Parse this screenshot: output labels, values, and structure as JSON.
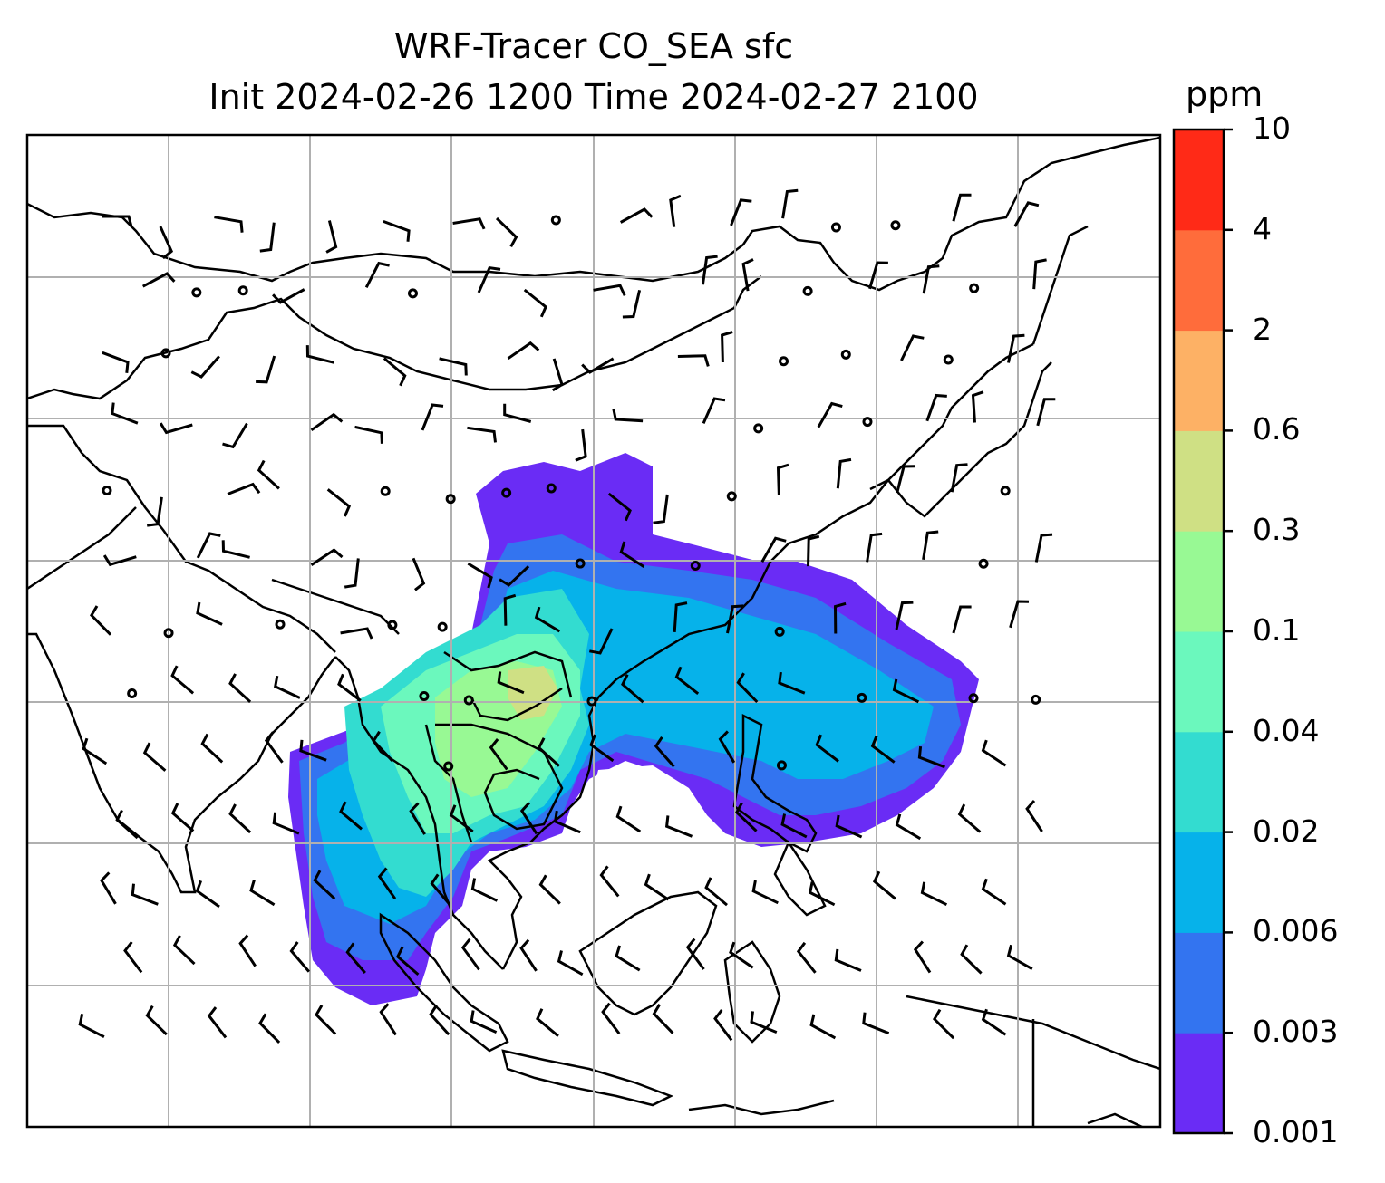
{
  "title": {
    "line1": "WRF-Tracer CO_SEA sfc",
    "line2": "Init 2024-02-26 1200 Time 2024-02-27 2100"
  },
  "colorbar": {
    "unit": "ppm",
    "levels": [
      "0.001",
      "0.003",
      "0.006",
      "0.02",
      "0.04",
      "0.1",
      "0.3",
      "0.6",
      "2",
      "4",
      "10"
    ],
    "colors": [
      "#6a2cf5",
      "#3374f0",
      "#06b2ea",
      "#33dcd0",
      "#6bf8bd",
      "#98f994",
      "#cfe084",
      "#fdb165",
      "#ff6c3b",
      "#ff2a17"
    ]
  },
  "map": {
    "gridlines": true,
    "barb_rows": 13,
    "barb_cols": 17
  }
}
